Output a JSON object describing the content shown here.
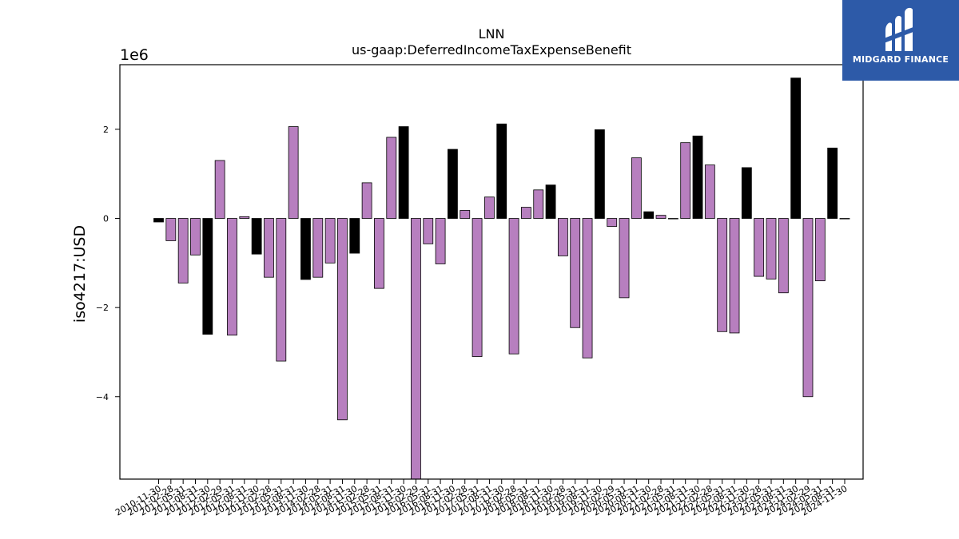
{
  "chart_data": {
    "type": "bar",
    "title": "LNN",
    "subtitle": "us-gaap:DeferredIncomeTaxExpenseBenefit",
    "ylabel": "iso4217:USD",
    "y_offset_label": "1e6",
    "ylim": [
      -5.85,
      3.45
    ],
    "yticks": [
      -4,
      -2,
      0,
      2
    ],
    "ytick_labels": [
      "−4",
      "−2",
      "0",
      "2"
    ],
    "grid": false,
    "colors": {
      "positive_period": "#000000",
      "other_period": "#b77fbf",
      "edge": "#000000"
    },
    "categories": [
      "2010-11-30",
      "2011-02-28",
      "2011-05-31",
      "2011-08-31",
      "2011-11-30",
      "2012-02-29",
      "2012-05-31",
      "2012-08-31",
      "2012-11-30",
      "2013-02-28",
      "2013-05-31",
      "2013-08-31",
      "2013-11-30",
      "2014-02-28",
      "2014-05-31",
      "2014-08-31",
      "2014-11-30",
      "2015-02-28",
      "2015-05-31",
      "2015-08-31",
      "2015-11-30",
      "2016-02-29",
      "2016-05-31",
      "2016-08-31",
      "2016-11-30",
      "2017-02-28",
      "2017-05-31",
      "2017-08-31",
      "2017-11-30",
      "2018-02-28",
      "2018-05-31",
      "2018-08-31",
      "2018-11-30",
      "2019-02-28",
      "2019-05-31",
      "2019-08-31",
      "2019-11-30",
      "2020-02-29",
      "2020-05-31",
      "2020-08-31",
      "2020-11-30",
      "2021-02-28",
      "2021-05-31",
      "2021-08-31",
      "2021-11-30",
      "2022-02-28",
      "2022-05-31",
      "2022-08-31",
      "2022-11-30",
      "2023-02-28",
      "2023-05-31",
      "2023-08-31",
      "2023-11-30",
      "2024-02-29",
      "2024-05-31",
      "2024-08-31",
      "2024-11-30"
    ],
    "values": [
      -0.08,
      -0.5,
      -1.45,
      -0.82,
      -2.6,
      1.3,
      -2.62,
      0.04,
      -0.8,
      -1.32,
      -3.2,
      2.06,
      -1.37,
      -1.32,
      -1.0,
      -4.52,
      -0.78,
      0.8,
      -1.57,
      1.82,
      2.06,
      -5.85,
      -0.57,
      -1.02,
      1.55,
      0.18,
      -3.1,
      0.48,
      2.12,
      -3.04,
      0.25,
      0.64,
      0.75,
      -0.84,
      -2.45,
      -3.13,
      1.99,
      -0.18,
      -1.78,
      1.36,
      0.15,
      0.07,
      -0.01,
      1.7,
      1.85,
      1.2,
      -2.54,
      -2.57,
      1.14,
      -1.3,
      -1.36,
      -1.67,
      3.15,
      -4.0,
      -1.4,
      1.58,
      0
    ],
    "bar_style": [
      "dark",
      "light",
      "light",
      "light",
      "dark",
      "light",
      "light",
      "light",
      "dark",
      "light",
      "light",
      "light",
      "dark",
      "light",
      "light",
      "light",
      "dark",
      "light",
      "light",
      "light",
      "dark",
      "light",
      "light",
      "light",
      "dark",
      "light",
      "light",
      "light",
      "dark",
      "light",
      "light",
      "light",
      "dark",
      "light",
      "light",
      "light",
      "dark",
      "light",
      "light",
      "light",
      "dark",
      "light",
      "light",
      "light",
      "dark",
      "light",
      "light",
      "light",
      "dark",
      "light",
      "light",
      "light",
      "dark",
      "light",
      "light",
      "dark",
      "light"
    ]
  },
  "watermark": {
    "brand": "MIDGARD FINANCE"
  }
}
